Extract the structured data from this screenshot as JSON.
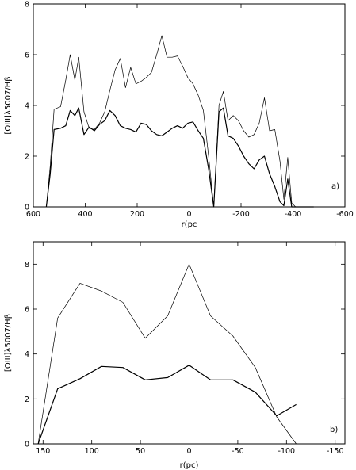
{
  "chart_data": [
    {
      "type": "line",
      "panel_label": "a)",
      "xlabel": "r(pc",
      "ylabel": "[OIII]λ5007/Hβ",
      "xlim": [
        600,
        -600
      ],
      "ylim": [
        0,
        8
      ],
      "xticks": [
        600,
        400,
        200,
        0,
        -200,
        -400,
        -600
      ],
      "yticks": [
        0,
        2,
        4,
        6,
        8
      ],
      "grid": false,
      "legend": "none",
      "series": [
        {
          "stroke_width": 0.7,
          "x": [
            550,
            535,
            520,
            495,
            475,
            458,
            440,
            425,
            405,
            385,
            365,
            345,
            325,
            305,
            285,
            265,
            245,
            225,
            205,
            185,
            165,
            145,
            125,
            105,
            85,
            65,
            45,
            25,
            5,
            -15,
            -35,
            -55,
            -75,
            -95,
            -115,
            -132,
            -150,
            -170,
            -190,
            -210,
            -230,
            -250,
            -270,
            -290,
            -310,
            -330,
            -350,
            -365,
            -380,
            -395,
            -410,
            -425,
            -440,
            -455,
            -470,
            -480
          ],
          "y": [
            0,
            1.6,
            3.85,
            3.95,
            5.0,
            6.0,
            5.0,
            5.9,
            3.75,
            3.1,
            3.05,
            3.3,
            3.75,
            4.6,
            5.4,
            5.85,
            4.7,
            5.5,
            4.85,
            4.95,
            5.1,
            5.3,
            6.0,
            6.75,
            5.9,
            5.9,
            5.95,
            5.55,
            5.1,
            4.85,
            4.4,
            3.8,
            2.0,
            0,
            4.0,
            4.55,
            3.4,
            3.6,
            3.4,
            3.0,
            2.75,
            2.85,
            3.3,
            4.3,
            3.0,
            3.05,
            1.8,
            0.3,
            1.95,
            0.15,
            0,
            0,
            0,
            0,
            0,
            0
          ]
        },
        {
          "stroke_width": 1.2,
          "x": [
            550,
            535,
            520,
            495,
            475,
            458,
            440,
            425,
            405,
            385,
            365,
            345,
            325,
            305,
            285,
            265,
            245,
            225,
            205,
            185,
            165,
            145,
            125,
            105,
            85,
            65,
            45,
            25,
            5,
            -15,
            -35,
            -55,
            -75,
            -95,
            -115,
            -132,
            -150,
            -170,
            -190,
            -210,
            -230,
            -250,
            -270,
            -290,
            -310,
            -330,
            -350,
            -365,
            -380,
            -395,
            -410,
            -425,
            -440,
            -455,
            -470,
            -480
          ],
          "y": [
            0,
            1.3,
            3.05,
            3.1,
            3.2,
            3.8,
            3.6,
            3.9,
            2.85,
            3.15,
            3.0,
            3.25,
            3.4,
            3.8,
            3.6,
            3.2,
            3.1,
            3.05,
            2.95,
            3.3,
            3.25,
            3.0,
            2.85,
            2.8,
            2.95,
            3.1,
            3.2,
            3.1,
            3.3,
            3.35,
            3.0,
            2.7,
            1.5,
            0,
            3.75,
            3.9,
            2.8,
            2.7,
            2.4,
            2.0,
            1.7,
            1.5,
            1.85,
            2.0,
            1.3,
            0.8,
            0.2,
            0.05,
            1.1,
            0,
            0,
            0,
            0,
            0,
            0,
            0
          ]
        }
      ]
    },
    {
      "type": "line",
      "panel_label": "b)",
      "xlabel": "r(pc)",
      "ylabel": "[OIII]λ5007/Hβ",
      "xlim": [
        160,
        -160
      ],
      "ylim": [
        0,
        9
      ],
      "xticks": [
        150,
        100,
        50,
        0,
        -50,
        -100,
        -150
      ],
      "yticks": [
        0,
        2,
        4,
        6,
        8
      ],
      "grid": false,
      "legend": "none",
      "series": [
        {
          "stroke_width": 0.7,
          "x": [
            155,
            135,
            112,
            90,
            68,
            45,
            22,
            0,
            -22,
            -45,
            -68,
            -90,
            -110
          ],
          "y": [
            0,
            5.6,
            7.15,
            6.8,
            6.3,
            4.7,
            5.7,
            8.0,
            5.7,
            4.8,
            3.4,
            1.2,
            0
          ]
        },
        {
          "stroke_width": 1.2,
          "x": [
            155,
            135,
            112,
            90,
            68,
            45,
            22,
            0,
            -22,
            -45,
            -68,
            -90,
            -110
          ],
          "y": [
            0,
            2.45,
            2.9,
            3.45,
            3.4,
            2.85,
            2.95,
            3.5,
            2.85,
            2.85,
            2.3,
            1.25,
            1.75
          ]
        }
      ]
    }
  ]
}
